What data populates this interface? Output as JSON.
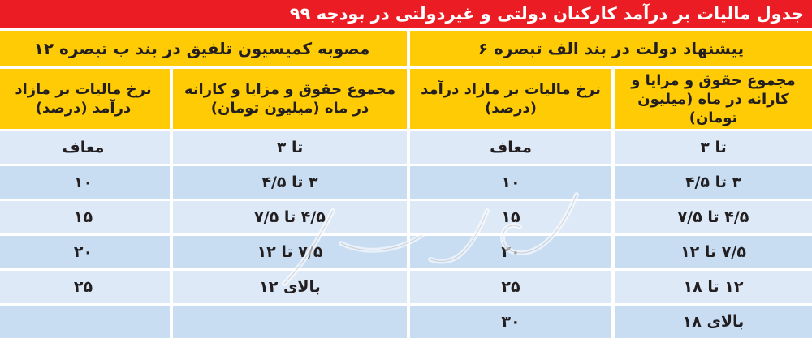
{
  "title": "جدول مالیات بر درآمد کارکنان دولتی و غیردولتی در بودجه ۹۹",
  "groups": [
    {
      "label": "پیشنهاد دولت در بند الف تبصره ۶",
      "col_sum": "مجموع حقوق و مزایا و کارانه در ماه (میلیون تومان)",
      "col_rate": "نرخ مالیات بر مازاد درآمد (درصد)",
      "rows": [
        {
          "sum": "تا ۳",
          "rate": "معاف"
        },
        {
          "sum": "۳ تا ۴/۵",
          "rate": "۱۰"
        },
        {
          "sum": "۴/۵ تا ۷/۵",
          "rate": "۱۵"
        },
        {
          "sum": "۷/۵ تا ۱۲",
          "rate": "۲۰"
        },
        {
          "sum": "۱۲ تا ۱۸",
          "rate": "۲۵"
        },
        {
          "sum": "بالای ۱۸",
          "rate": "۳۰"
        }
      ]
    },
    {
      "label": "مصوبه کمیسیون تلفیق در بند ب تبصره ۱۲",
      "col_sum": "مجموع حقوق و مزایا و کارانه در ماه (میلیون تومان)",
      "col_rate": "نرخ مالیات بر مازاد درآمد (درصد)",
      "rows": [
        {
          "sum": "تا ۳",
          "rate": "معاف"
        },
        {
          "sum": "۳ تا ۴/۵",
          "rate": "۱۰"
        },
        {
          "sum": "۴/۵ تا ۷/۵",
          "rate": "۱۵"
        },
        {
          "sum": "۷/۵ تا ۱۲",
          "rate": "۲۰"
        },
        {
          "sum": "بالای ۱۲",
          "rate": "۲۵"
        },
        {
          "sum": "",
          "rate": ""
        }
      ]
    }
  ],
  "watermark": "دنیای اقتصاد",
  "colors": {
    "title_bg": "#ec1c24",
    "header_bg": "#ffcb05",
    "row_light": "#dde9f7",
    "row_dark": "#c8dcf2"
  }
}
